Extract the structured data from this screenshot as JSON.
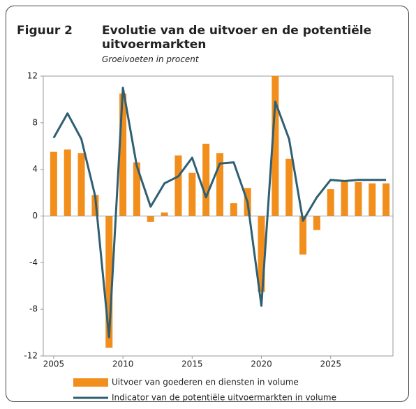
{
  "chart_data": {
    "type": "bar-line",
    "label": "Figuur 2",
    "title": "Evolutie van de uitvoer en de potentiële uitvoermarkten",
    "subtitle": "Groeivoeten in procent",
    "x": [
      2005,
      2006,
      2007,
      2008,
      2009,
      2010,
      2011,
      2012,
      2013,
      2014,
      2015,
      2016,
      2017,
      2018,
      2019,
      2020,
      2021,
      2022,
      2023,
      2024,
      2025,
      2026,
      2027,
      2028,
      2029
    ],
    "series": [
      {
        "name": "Uitvoer van goederen en diensten in volume",
        "type": "bar",
        "color": "#f28e1c",
        "values": [
          5.5,
          5.7,
          5.4,
          1.8,
          -11.3,
          10.5,
          4.6,
          -0.5,
          0.3,
          5.2,
          3.7,
          6.2,
          5.4,
          1.1,
          2.4,
          -6.5,
          12,
          4.9,
          -3.3,
          -1.2,
          2.3,
          3.0,
          2.9,
          2.8,
          2.8
        ]
      },
      {
        "name": "Indicator van de potentiële uitvoermarkten in volume",
        "type": "line",
        "color": "#2e5f73",
        "values": [
          6.7,
          8.8,
          6.6,
          1.7,
          -10.4,
          11.0,
          4.3,
          0.8,
          2.8,
          3.4,
          5.0,
          1.6,
          4.5,
          4.6,
          1.2,
          -7.7,
          9.8,
          6.6,
          -0.4,
          1.6,
          3.1,
          3.0,
          3.1,
          3.1,
          3.1
        ]
      }
    ],
    "xlim": [
      2004.25,
      2029.5
    ],
    "xticks": [
      2005,
      2010,
      2015,
      2020,
      2025
    ],
    "ylim": [
      -12,
      12
    ],
    "yticks": [
      12,
      8,
      4,
      0,
      -4,
      -8,
      -12
    ],
    "grid": false,
    "legend": "bottom"
  }
}
